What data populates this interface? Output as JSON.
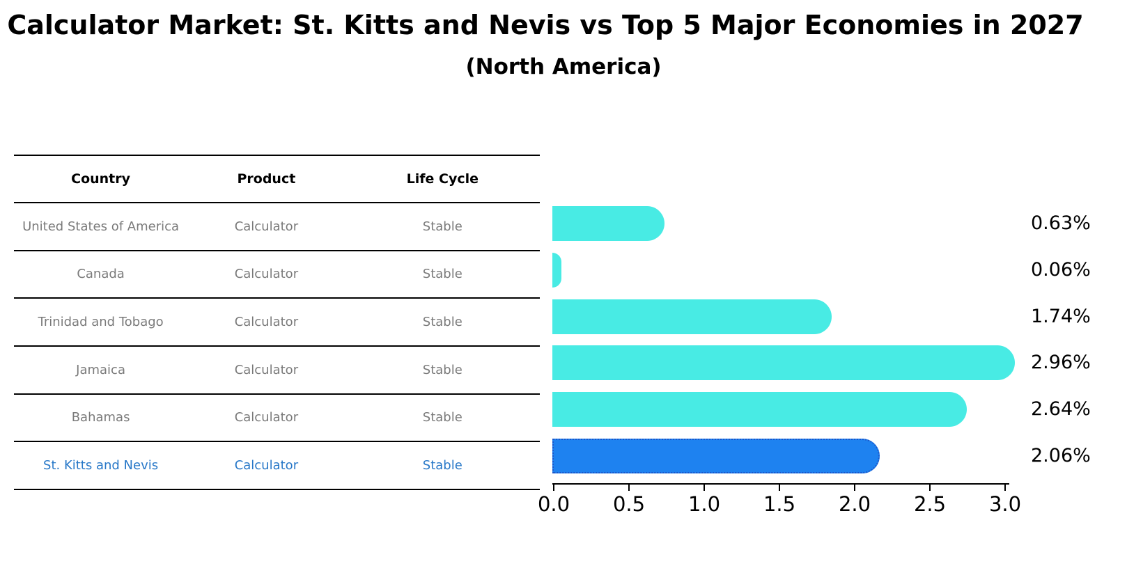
{
  "title": "Calculator Market: St. Kitts and Nevis vs Top 5 Major Economies in 2027",
  "subtitle": "(North America)",
  "table": {
    "columns": [
      "Country",
      "Product",
      "Life Cycle"
    ]
  },
  "chart_data": {
    "type": "bar",
    "orientation": "horizontal",
    "xlim": [
      0,
      3.0
    ],
    "x_ticks": [
      "0.0",
      "0.5",
      "1.0",
      "1.5",
      "2.0",
      "2.5",
      "3.0"
    ],
    "legend": "none",
    "grid": "off",
    "highlight_index": 5,
    "colors": {
      "bar": "#48ebe4",
      "highlight_bar": "#1e82f0",
      "highlight_border": "#1c55c8",
      "highlight_text": "#2878c8",
      "table_text": "#7a7a7a"
    },
    "categories": [
      "United States of America",
      "Canada",
      "Trinidad and Tobago",
      "Jamaica",
      "Bahamas",
      "St. Kitts and Nevis"
    ],
    "values": [
      0.63,
      0.06,
      1.74,
      2.96,
      2.64,
      2.06
    ],
    "rows": [
      {
        "country": "United States of America",
        "product": "Calculator",
        "life_cycle": "Stable",
        "value": 0.63,
        "label": "0.63%",
        "highlight": false
      },
      {
        "country": "Canada",
        "product": "Calculator",
        "life_cycle": "Stable",
        "value": 0.06,
        "label": "0.06%",
        "highlight": false
      },
      {
        "country": "Trinidad and Tobago",
        "product": "Calculator",
        "life_cycle": "Stable",
        "value": 1.74,
        "label": "1.74%",
        "highlight": false
      },
      {
        "country": "Jamaica",
        "product": "Calculator",
        "life_cycle": "Stable",
        "value": 2.96,
        "label": "2.96%",
        "highlight": false
      },
      {
        "country": "Bahamas",
        "product": "Calculator",
        "life_cycle": "Stable",
        "value": 2.64,
        "label": "2.64%",
        "highlight": false
      },
      {
        "country": "St. Kitts and Nevis",
        "product": "Calculator",
        "life_cycle": "Stable",
        "value": 2.06,
        "label": "2.06%",
        "highlight": true
      }
    ]
  }
}
